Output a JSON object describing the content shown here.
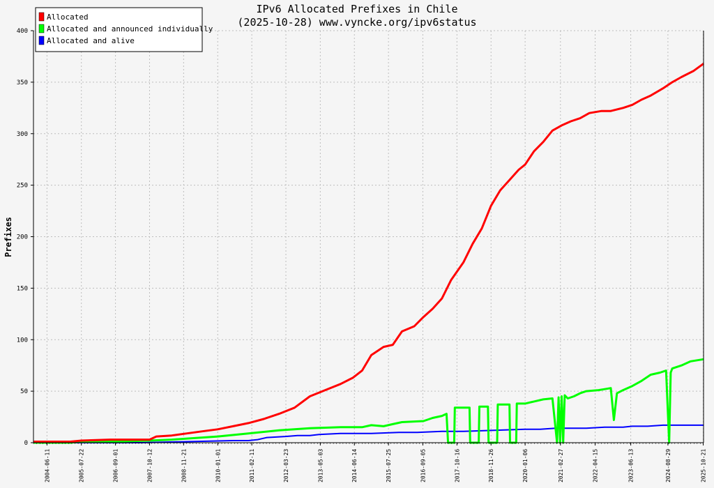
{
  "chart_data": {
    "type": "line",
    "title": "IPv6 Allocated Prefixes in Chile",
    "subtitle": "(2025-10-28) www.vyncke.org/ipv6status",
    "xlabel": "",
    "ylabel": "Prefixes",
    "ylim": [
      0,
      400
    ],
    "xlim": [
      2004.0,
      2025.82
    ],
    "yticks": [
      0,
      50,
      100,
      150,
      200,
      250,
      300,
      350,
      400
    ],
    "xtick_labels": [
      "2004-06-11",
      "2005-07-22",
      "2006-09-01",
      "2007-10-12",
      "2008-11-21",
      "2010-01-01",
      "2011-02-11",
      "2012-03-23",
      "2013-05-03",
      "2014-06-14",
      "2015-07-25",
      "2016-09-05",
      "2017-10-16",
      "2018-11-26",
      "2020-01-06",
      "2021-02-27",
      "2022-04-15",
      "2023-06-13",
      "2024-08-29",
      "2025-10-21"
    ],
    "xtick_values": [
      2004.44,
      2005.56,
      2006.67,
      2007.78,
      2008.89,
      2010.0,
      2011.11,
      2012.22,
      2013.34,
      2014.45,
      2015.56,
      2016.68,
      2017.79,
      2018.9,
      2020.01,
      2021.16,
      2022.29,
      2023.45,
      2024.66,
      2025.81
    ],
    "grid": true,
    "legend_position": "top-left",
    "series": [
      {
        "name": "Allocated",
        "color": "#ff0000",
        "x": [
          2004.0,
          2005.2,
          2005.56,
          2006.5,
          2007.78,
          2008.0,
          2008.5,
          2009.0,
          2009.5,
          2010.0,
          2010.5,
          2011.0,
          2011.5,
          2012.0,
          2012.5,
          2013.0,
          2013.5,
          2014.0,
          2014.4,
          2014.7,
          2015.0,
          2015.4,
          2015.7,
          2016.0,
          2016.4,
          2016.7,
          2017.0,
          2017.3,
          2017.6,
          2018.0,
          2018.3,
          2018.6,
          2018.9,
          2019.2,
          2019.5,
          2019.8,
          2020.01,
          2020.3,
          2020.6,
          2020.9,
          2021.2,
          2021.5,
          2021.8,
          2022.1,
          2022.5,
          2022.8,
          2023.2,
          2023.5,
          2023.8,
          2024.1,
          2024.5,
          2024.8,
          2025.1,
          2025.5,
          2025.82
        ],
        "values": [
          1,
          1,
          2,
          3,
          3,
          6,
          7,
          9,
          11,
          13,
          16,
          19,
          23,
          28,
          34,
          45,
          51,
          57,
          63,
          70,
          85,
          93,
          95,
          108,
          113,
          122,
          130,
          140,
          158,
          175,
          193,
          208,
          230,
          245,
          255,
          265,
          270,
          283,
          292,
          303,
          308,
          312,
          315,
          320,
          322,
          322,
          325,
          328,
          333,
          337,
          344,
          350,
          355,
          361,
          368
        ]
      },
      {
        "name": "Allocated and announced individually",
        "color": "#00ff00",
        "x": [
          2004.0,
          2005.2,
          2005.56,
          2006.5,
          2007.78,
          2008.5,
          2009.0,
          2010.0,
          2011.0,
          2012.0,
          2012.5,
          2013.0,
          2014.0,
          2014.7,
          2015.0,
          2015.4,
          2015.7,
          2016.0,
          2016.7,
          2017.0,
          2017.3,
          2017.45,
          2017.5,
          2017.7,
          2017.72,
          2018.2,
          2018.22,
          2018.5,
          2018.52,
          2018.8,
          2018.82,
          2019.1,
          2019.12,
          2019.5,
          2019.52,
          2019.72,
          2019.74,
          2020.01,
          2020.3,
          2020.6,
          2020.9,
          2021.05,
          2021.1,
          2021.15,
          2021.2,
          2021.25,
          2021.3,
          2021.4,
          2021.6,
          2021.8,
          2022.0,
          2022.4,
          2022.6,
          2022.8,
          2022.9,
          2023.0,
          2023.2,
          2023.5,
          2023.8,
          2024.1,
          2024.4,
          2024.6,
          2024.7,
          2024.75,
          2024.8,
          2025.1,
          2025.4,
          2025.82
        ],
        "values": [
          0,
          0,
          1,
          1,
          2,
          3,
          4,
          6,
          9,
          12,
          13,
          14,
          15,
          15,
          17,
          16,
          18,
          20,
          21,
          24,
          26,
          28,
          0,
          0,
          34,
          34,
          0,
          0,
          35,
          35,
          0,
          0,
          37,
          37,
          0,
          0,
          38,
          38,
          40,
          42,
          43,
          0,
          44,
          0,
          45,
          0,
          46,
          43,
          45,
          48,
          50,
          51,
          52,
          53,
          22,
          48,
          51,
          55,
          60,
          66,
          68,
          70,
          0,
          68,
          72,
          75,
          79,
          81
        ]
      },
      {
        "name": "Allocated and alive",
        "color": "#0000ff",
        "x": [
          2004.0,
          2007.5,
          2009.0,
          2010.5,
          2011.0,
          2011.3,
          2011.6,
          2012.2,
          2012.6,
          2013.0,
          2013.3,
          2014.0,
          2015.0,
          2015.9,
          2016.5,
          2017.3,
          2018.0,
          2019.0,
          2020.0,
          2020.5,
          2021.0,
          2021.5,
          2022.0,
          2022.6,
          2023.2,
          2023.5,
          2024.0,
          2024.5,
          2025.0,
          2025.82
        ],
        "values": [
          0,
          0,
          1,
          2,
          2,
          3,
          5,
          6,
          7,
          7,
          8,
          9,
          9,
          10,
          10,
          11,
          11,
          12,
          13,
          13,
          14,
          14,
          14,
          15,
          15,
          16,
          16,
          17,
          17,
          17
        ]
      }
    ]
  }
}
